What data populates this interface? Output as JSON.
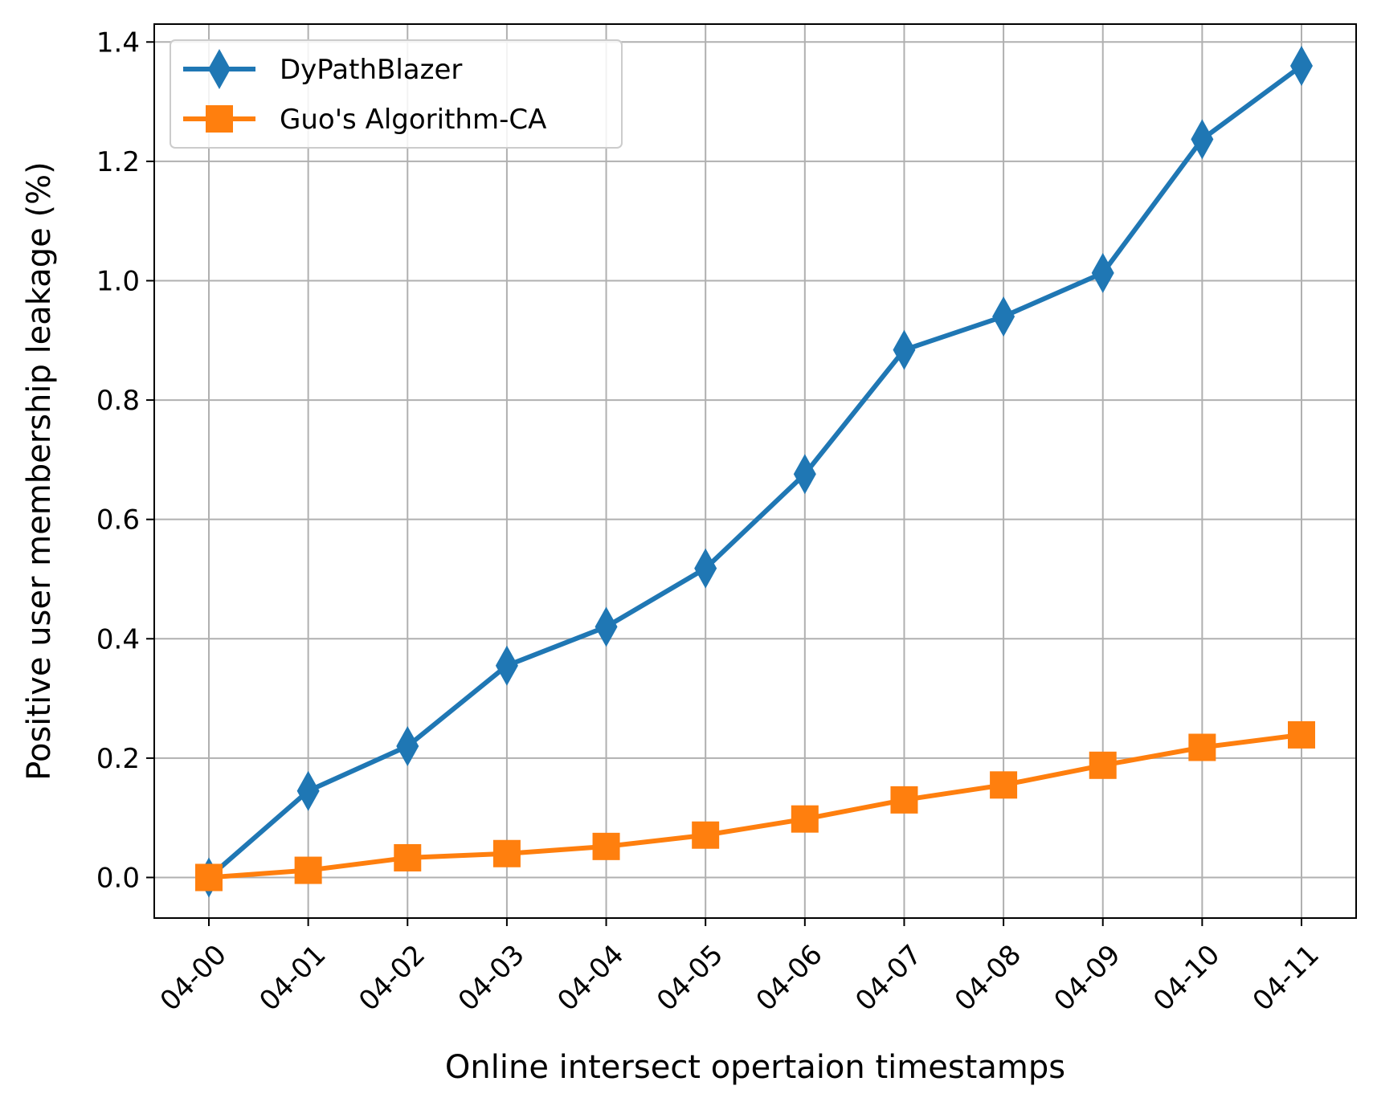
{
  "chart_data": {
    "type": "line",
    "xlabel": "Online intersect opertaion timestamps",
    "ylabel": "Positive user membership leakage (%)",
    "categories": [
      "04-00",
      "04-01",
      "04-02",
      "04-03",
      "04-04",
      "04-05",
      "04-06",
      "04-07",
      "04-08",
      "04-09",
      "04-10",
      "04-11"
    ],
    "ylim": [
      -0.068,
      1.43
    ],
    "yticks": [
      0.0,
      0.2,
      0.4,
      0.6,
      0.8,
      1.0,
      1.2,
      1.4
    ],
    "ytick_labels": [
      "0.0",
      "0.2",
      "0.4",
      "0.6",
      "0.8",
      "1.0",
      "1.2",
      "1.4"
    ],
    "grid": true,
    "legend_position": "upper-left",
    "series": [
      {
        "name": "DyPathBlazer",
        "color": "#1f77b4",
        "marker": "thin-diamond",
        "values": [
          0.0,
          0.145,
          0.22,
          0.355,
          0.42,
          0.518,
          0.676,
          0.884,
          0.94,
          1.013,
          1.237,
          1.36
        ]
      },
      {
        "name": "Guo's Algorithm-CA",
        "color": "#ff7f0e",
        "marker": "square",
        "values": [
          0.0,
          0.012,
          0.033,
          0.04,
          0.052,
          0.071,
          0.098,
          0.13,
          0.155,
          0.188,
          0.218,
          0.239
        ]
      }
    ]
  }
}
